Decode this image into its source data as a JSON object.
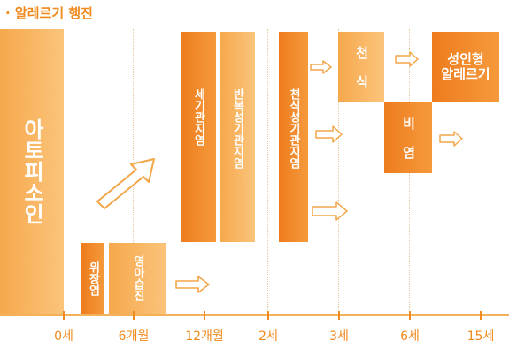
{
  "title": "· 알레르기 행진",
  "timeline": [
    "0세",
    "6개월",
    "12개월",
    "2세",
    "3세",
    "6세",
    "15세"
  ],
  "conditions": {
    "atopic_dermatitis": "아토피소인",
    "gastroenteritis": "위장염",
    "infant_asthma": "영아습진",
    "bronchiolitis": "세기관지염",
    "recurrent_bronchiolitis": "반복성기관지염",
    "asthmatic_bronchiolitis": "천식성기관지염",
    "asthma": "천 식",
    "rhinitis": "비 염",
    "adult_allergy": "성인형\n알레르기"
  }
}
